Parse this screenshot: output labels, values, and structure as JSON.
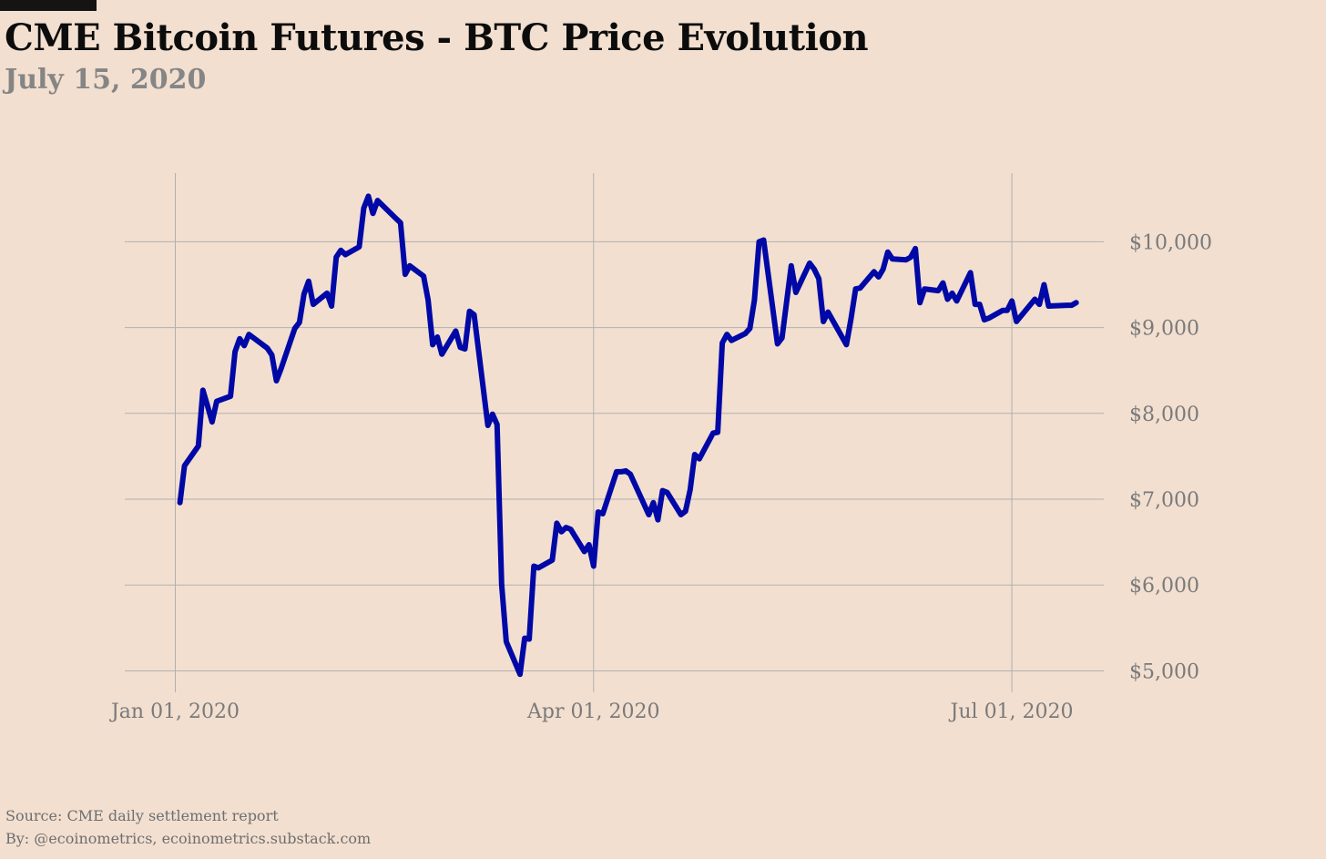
{
  "header": {
    "title": "CME Bitcoin Futures - BTC Price Evolution",
    "subtitle": "July 15, 2020"
  },
  "footer": {
    "source": "Source: CME daily settlement report",
    "byline": "By: @ecoinometrics, ecoinometrics.substack.com"
  },
  "colors": {
    "background": "#f2dfd0",
    "line": "#0008a6",
    "grid": "#b4b0ab",
    "tick_text": "#7a7a7a"
  },
  "chart_data": {
    "type": "line",
    "title": "CME Bitcoin Futures - BTC Price Evolution",
    "subtitle": "July 15, 2020",
    "xlabel": "",
    "ylabel": "",
    "grid": true,
    "y_axis_side": "right",
    "xlim": [
      "2019-12-21",
      "2020-07-21"
    ],
    "ylim": [
      4750,
      10800
    ],
    "x_ticks": [
      {
        "date": "2020-01-01",
        "label": "Jan 01, 2020"
      },
      {
        "date": "2020-04-01",
        "label": "Apr 01, 2020"
      },
      {
        "date": "2020-07-01",
        "label": "Jul 01, 2020"
      }
    ],
    "y_ticks": [
      {
        "value": 5000,
        "label": "$5,000"
      },
      {
        "value": 6000,
        "label": "$6,000"
      },
      {
        "value": 7000,
        "label": "$7,000"
      },
      {
        "value": 8000,
        "label": "$8,000"
      },
      {
        "value": 9000,
        "label": "$9,000"
      },
      {
        "value": 10000,
        "label": "$10,000"
      }
    ],
    "series": [
      {
        "values": [
          [
            "2020-01-02",
            6960
          ],
          [
            "2020-01-03",
            7390
          ],
          [
            "2020-01-06",
            7620
          ],
          [
            "2020-01-07",
            8270
          ],
          [
            "2020-01-08",
            8090
          ],
          [
            "2020-01-09",
            7900
          ],
          [
            "2020-01-10",
            8140
          ],
          [
            "2020-01-13",
            8200
          ],
          [
            "2020-01-14",
            8720
          ],
          [
            "2020-01-15",
            8870
          ],
          [
            "2020-01-16",
            8790
          ],
          [
            "2020-01-17",
            8920
          ],
          [
            "2020-01-21",
            8760
          ],
          [
            "2020-01-22",
            8680
          ],
          [
            "2020-01-23",
            8380
          ],
          [
            "2020-01-24",
            8520
          ],
          [
            "2020-01-27",
            8990
          ],
          [
            "2020-01-28",
            9060
          ],
          [
            "2020-01-29",
            9390
          ],
          [
            "2020-01-30",
            9540
          ],
          [
            "2020-01-31",
            9270
          ],
          [
            "2020-02-03",
            9400
          ],
          [
            "2020-02-04",
            9250
          ],
          [
            "2020-02-05",
            9820
          ],
          [
            "2020-02-06",
            9900
          ],
          [
            "2020-02-07",
            9850
          ],
          [
            "2020-02-10",
            9940
          ],
          [
            "2020-02-11",
            10390
          ],
          [
            "2020-02-12",
            10530
          ],
          [
            "2020-02-13",
            10330
          ],
          [
            "2020-02-14",
            10480
          ],
          [
            "2020-02-18",
            10270
          ],
          [
            "2020-02-19",
            10220
          ],
          [
            "2020-02-20",
            9620
          ],
          [
            "2020-02-21",
            9720
          ],
          [
            "2020-02-24",
            9600
          ],
          [
            "2020-02-25",
            9320
          ],
          [
            "2020-02-26",
            8800
          ],
          [
            "2020-02-27",
            8890
          ],
          [
            "2020-02-28",
            8690
          ],
          [
            "2020-03-02",
            8960
          ],
          [
            "2020-03-03",
            8770
          ],
          [
            "2020-03-04",
            8750
          ],
          [
            "2020-03-05",
            9190
          ],
          [
            "2020-03-06",
            9150
          ],
          [
            "2020-03-09",
            7860
          ],
          [
            "2020-03-10",
            7990
          ],
          [
            "2020-03-11",
            7870
          ],
          [
            "2020-03-12",
            6010
          ],
          [
            "2020-03-13",
            5340
          ],
          [
            "2020-03-16",
            4960
          ],
          [
            "2020-03-17",
            5380
          ],
          [
            "2020-03-18",
            5370
          ],
          [
            "2020-03-19",
            6220
          ],
          [
            "2020-03-20",
            6200
          ],
          [
            "2020-03-23",
            6290
          ],
          [
            "2020-03-24",
            6720
          ],
          [
            "2020-03-25",
            6620
          ],
          [
            "2020-03-26",
            6670
          ],
          [
            "2020-03-27",
            6650
          ],
          [
            "2020-03-30",
            6390
          ],
          [
            "2020-03-31",
            6470
          ],
          [
            "2020-04-01",
            6220
          ],
          [
            "2020-04-02",
            6850
          ],
          [
            "2020-04-03",
            6830
          ],
          [
            "2020-04-06",
            7320
          ],
          [
            "2020-04-07",
            7320
          ],
          [
            "2020-04-08",
            7330
          ],
          [
            "2020-04-09",
            7290
          ],
          [
            "2020-04-13",
            6820
          ],
          [
            "2020-04-14",
            6960
          ],
          [
            "2020-04-15",
            6760
          ],
          [
            "2020-04-16",
            7100
          ],
          [
            "2020-04-17",
            7080
          ],
          [
            "2020-04-20",
            6820
          ],
          [
            "2020-04-21",
            6860
          ],
          [
            "2020-04-22",
            7110
          ],
          [
            "2020-04-23",
            7520
          ],
          [
            "2020-04-24",
            7470
          ],
          [
            "2020-04-27",
            7770
          ],
          [
            "2020-04-28",
            7780
          ],
          [
            "2020-04-29",
            8820
          ],
          [
            "2020-04-30",
            8920
          ],
          [
            "2020-05-01",
            8850
          ],
          [
            "2020-05-04",
            8930
          ],
          [
            "2020-05-05",
            8990
          ],
          [
            "2020-05-06",
            9320
          ],
          [
            "2020-05-07",
            10000
          ],
          [
            "2020-05-08",
            10020
          ],
          [
            "2020-05-11",
            8810
          ],
          [
            "2020-05-12",
            8880
          ],
          [
            "2020-05-14",
            9720
          ],
          [
            "2020-05-15",
            9410
          ],
          [
            "2020-05-18",
            9750
          ],
          [
            "2020-05-19",
            9680
          ],
          [
            "2020-05-20",
            9570
          ],
          [
            "2020-05-21",
            9070
          ],
          [
            "2020-05-22",
            9180
          ],
          [
            "2020-05-26",
            8800
          ],
          [
            "2020-05-27",
            9100
          ],
          [
            "2020-05-28",
            9450
          ],
          [
            "2020-05-29",
            9460
          ],
          [
            "2020-06-01",
            9650
          ],
          [
            "2020-06-02",
            9590
          ],
          [
            "2020-06-03",
            9680
          ],
          [
            "2020-06-04",
            9880
          ],
          [
            "2020-06-05",
            9800
          ],
          [
            "2020-06-08",
            9790
          ],
          [
            "2020-06-09",
            9820
          ],
          [
            "2020-06-10",
            9920
          ],
          [
            "2020-06-11",
            9290
          ],
          [
            "2020-06-12",
            9450
          ],
          [
            "2020-06-15",
            9430
          ],
          [
            "2020-06-16",
            9520
          ],
          [
            "2020-06-17",
            9330
          ],
          [
            "2020-06-18",
            9400
          ],
          [
            "2020-06-19",
            9310
          ],
          [
            "2020-06-22",
            9640
          ],
          [
            "2020-06-23",
            9270
          ],
          [
            "2020-06-24",
            9270
          ],
          [
            "2020-06-25",
            9090
          ],
          [
            "2020-06-26",
            9110
          ],
          [
            "2020-06-29",
            9200
          ],
          [
            "2020-06-30",
            9200
          ],
          [
            "2020-07-01",
            9310
          ],
          [
            "2020-07-02",
            9070
          ],
          [
            "2020-07-06",
            9330
          ],
          [
            "2020-07-07",
            9270
          ],
          [
            "2020-07-08",
            9500
          ],
          [
            "2020-07-09",
            9250
          ],
          [
            "2020-07-13",
            9260
          ],
          [
            "2020-07-14",
            9260
          ],
          [
            "2020-07-15",
            9290
          ]
        ]
      }
    ]
  }
}
